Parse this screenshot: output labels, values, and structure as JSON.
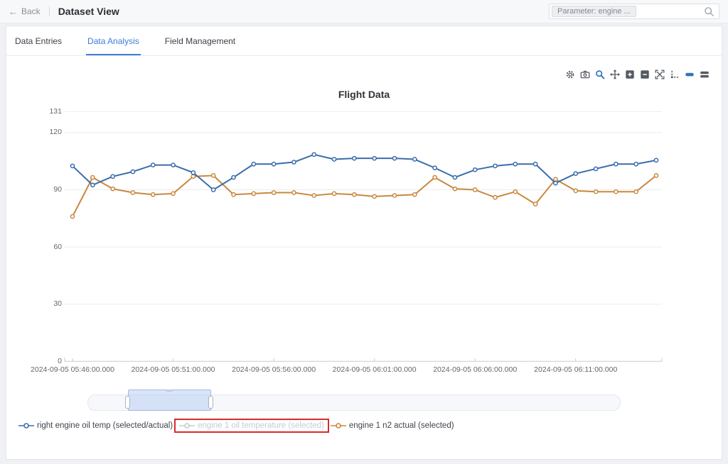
{
  "header": {
    "back": "Back",
    "title": "Dataset View",
    "search_chip": "Parameter: engine ..."
  },
  "tabs": [
    {
      "label": "Data Entries",
      "active": false
    },
    {
      "label": "Data Analysis",
      "active": true
    },
    {
      "label": "Field Management",
      "active": false
    }
  ],
  "toolbar": {
    "icons": [
      "settings-icon",
      "camera-icon",
      "zoom-icon",
      "pan-icon",
      "zoom-in-icon",
      "zoom-out-icon",
      "autoscale-icon",
      "spikelines-icon",
      "hover-closest-icon",
      "hover-compare-icon"
    ],
    "active_icons": [
      "zoom-icon",
      "hover-closest-icon"
    ],
    "accent_color": "#3076b8",
    "icon_color": "#545a63"
  },
  "chart_data": {
    "type": "line",
    "title": "Flight Data",
    "xlabel": "",
    "ylabel": "",
    "ylim": [
      0,
      131
    ],
    "y_ticks": [
      0,
      30,
      60,
      90,
      120,
      131
    ],
    "grid": true,
    "x": [
      "05:46:00",
      "05:47:00",
      "05:48:00",
      "05:49:00",
      "05:50:00",
      "05:51:00",
      "05:52:00",
      "05:53:00",
      "05:54:00",
      "05:55:00",
      "05:56:00",
      "05:57:00",
      "05:58:00",
      "05:59:00",
      "06:00:00",
      "06:01:00",
      "06:02:00",
      "06:03:00",
      "06:04:00",
      "06:05:00",
      "06:06:00",
      "06:07:00",
      "06:08:00",
      "06:09:00",
      "06:10:00",
      "06:11:00",
      "06:12:00",
      "06:13:00",
      "06:14:00",
      "06:15:00"
    ],
    "x_tick_labels": [
      "2024-09-05 05:46:00.000",
      "2024-09-05 05:51:00.000",
      "2024-09-05 05:56:00.000",
      "2024-09-05 06:01:00.000",
      "2024-09-05 06:06:00.000",
      "2024-09-05 06:11:00.000"
    ],
    "series": [
      {
        "name": "right engine oil temp (selected/actual)",
        "color": "#3a6dab",
        "visible": true,
        "values": [
          102.5,
          92.5,
          97,
          99.5,
          103,
          103,
          99,
          90,
          96.5,
          103.5,
          103.5,
          104.5,
          108.5,
          106,
          106.5,
          106.5,
          106.5,
          106,
          101.5,
          96.5,
          100.5,
          102.5,
          103.5,
          103.5,
          93.5,
          98.5,
          101,
          103.5,
          103.5,
          105.5
        ]
      },
      {
        "name": "engine 1 oil temperature (selected)",
        "color": "#c5cad2",
        "visible": false,
        "values": []
      },
      {
        "name": "engine 1 n2 actual (selected)",
        "color": "#c9883e",
        "visible": true,
        "values": [
          76,
          96.5,
          90.5,
          88.5,
          87.5,
          88,
          97,
          97.5,
          87.5,
          88,
          88.5,
          88.5,
          87,
          88,
          87.5,
          86.5,
          87,
          87.5,
          96.5,
          90.5,
          90,
          86,
          89,
          82.5,
          95.5,
          89.5,
          89,
          89,
          89,
          97.5
        ]
      }
    ],
    "legend_position": "bottom-left"
  },
  "legend": {
    "items": [
      {
        "label": "right engine oil temp (selected/actual)",
        "state": "active",
        "color": "#3a6dab",
        "highlighted": false
      },
      {
        "label": "engine 1 oil temperature (selected)",
        "state": "disabled",
        "color": "#c5cad2",
        "highlighted": true
      },
      {
        "label": "engine 1 n2 actual (selected)",
        "state": "active",
        "color": "#c9883e",
        "highlighted": false
      }
    ],
    "highlight_color": "#d92b2b"
  }
}
